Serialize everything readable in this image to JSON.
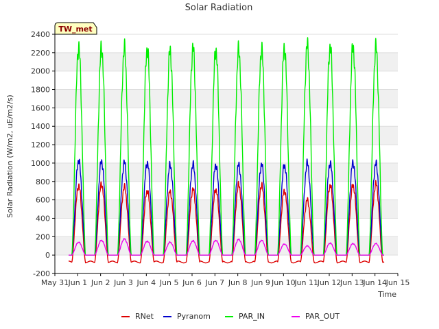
{
  "chart_data": {
    "type": "line",
    "title": "Solar Radiation",
    "xlabel": "Time",
    "ylabel": "Solar Radiation (W/m2, uE/m2/s)",
    "site_label": "TW_met",
    "xlim": [
      0,
      15
    ],
    "ylim": [
      -200,
      2400
    ],
    "x_ticks": [
      {
        "value": 0,
        "label": "May 31"
      },
      {
        "value": 1,
        "label": "Jun 1"
      },
      {
        "value": 2,
        "label": "Jun 2"
      },
      {
        "value": 3,
        "label": "Jun 3"
      },
      {
        "value": 4,
        "label": "Jun 4"
      },
      {
        "value": 5,
        "label": "Jun 5"
      },
      {
        "value": 6,
        "label": "Jun 6"
      },
      {
        "value": 7,
        "label": "Jun 7"
      },
      {
        "value": 8,
        "label": "Jun 8"
      },
      {
        "value": 9,
        "label": "Jun 9"
      },
      {
        "value": 10,
        "label": "Jun 10"
      },
      {
        "value": 11,
        "label": "Jun 11"
      },
      {
        "value": 12,
        "label": "Jun 12"
      },
      {
        "value": 13,
        "label": "Jun 13"
      },
      {
        "value": 14,
        "label": "Jun 14"
      },
      {
        "value": 15,
        "label": "Jun 15"
      }
    ],
    "y_ticks": [
      -200,
      0,
      200,
      400,
      600,
      800,
      1000,
      1200,
      1400,
      1600,
      1800,
      2000,
      2200,
      2400
    ],
    "grid": "horizontal bands",
    "legend_position": "bottom",
    "series": [
      {
        "name": "RNet",
        "color": "#dd0000",
        "night": -75,
        "peaks": [
          755,
          770,
          740,
          700,
          690,
          715,
          715,
          765,
          760,
          700,
          600,
          760,
          760,
          775
        ]
      },
      {
        "name": "Pyranom",
        "color": "#0000cc",
        "night": 0,
        "peaks": [
          1030,
          1020,
          1005,
          1005,
          980,
          985,
          980,
          980,
          985,
          980,
          1000,
          1000,
          1005,
          995
        ]
      },
      {
        "name": "PAR_IN",
        "color": "#00ee00",
        "night": 0,
        "peaks": [
          2265,
          2255,
          2245,
          2245,
          2220,
          2250,
          2235,
          2230,
          2235,
          2255,
          2280,
          2270,
          2270,
          2260
        ]
      },
      {
        "name": "PAR_OUT",
        "color": "#ee00ee",
        "night": 0,
        "peaks": [
          140,
          160,
          175,
          150,
          140,
          155,
          160,
          170,
          160,
          120,
          100,
          130,
          125,
          125
        ]
      }
    ],
    "day_centers": [
      1.04,
      2.04,
      3.04,
      4.04,
      5.04,
      6.04,
      7.04,
      8.04,
      9.04,
      10.04,
      11.04,
      12.04,
      13.04,
      14.04
    ]
  }
}
